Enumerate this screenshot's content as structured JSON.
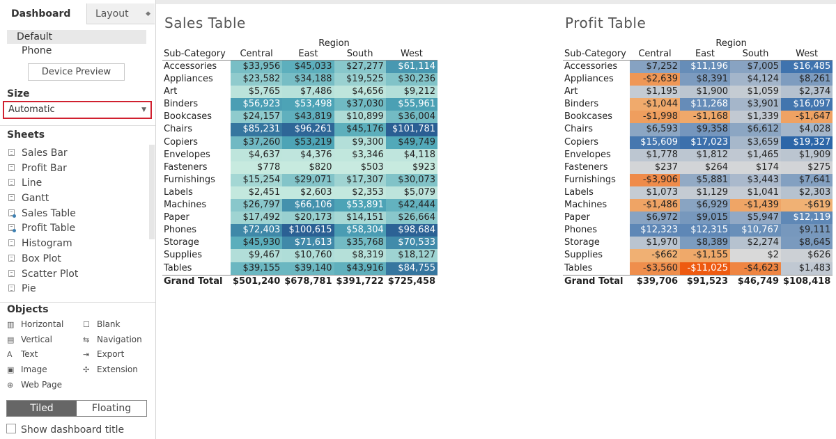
{
  "tabs": {
    "dashboard": "Dashboard",
    "layout": "Layout"
  },
  "device": {
    "default": "Default",
    "phone": "Phone",
    "preview_button": "Device Preview"
  },
  "size": {
    "title": "Size",
    "value": "Automatic"
  },
  "sheets": {
    "title": "Sheets",
    "items": [
      {
        "label": "Sales Bar",
        "used": false
      },
      {
        "label": "Profit Bar",
        "used": false
      },
      {
        "label": "Line",
        "used": false
      },
      {
        "label": "Gantt",
        "used": false
      },
      {
        "label": "Sales Table",
        "used": true
      },
      {
        "label": "Profit Table",
        "used": true
      },
      {
        "label": "Histogram",
        "used": false
      },
      {
        "label": "Box Plot",
        "used": false
      },
      {
        "label": "Scatter Plot",
        "used": false
      },
      {
        "label": "Pie",
        "used": false
      }
    ]
  },
  "objects": {
    "title": "Objects",
    "items": [
      {
        "label": "Horizontal",
        "icon": "horizontal-container-icon",
        "glyph": "▥"
      },
      {
        "label": "Blank",
        "icon": "blank-icon",
        "glyph": "☐"
      },
      {
        "label": "Vertical",
        "icon": "vertical-container-icon",
        "glyph": "▤"
      },
      {
        "label": "Navigation",
        "icon": "navigation-icon",
        "glyph": "⇆"
      },
      {
        "label": "Text",
        "icon": "text-icon",
        "glyph": "A"
      },
      {
        "label": "Export",
        "icon": "export-icon",
        "glyph": "⇥"
      },
      {
        "label": "Image",
        "icon": "image-icon",
        "glyph": "▣"
      },
      {
        "label": "Extension",
        "icon": "extension-icon",
        "glyph": "✣"
      },
      {
        "label": "Web Page",
        "icon": "web-page-icon",
        "glyph": "⊕"
      }
    ]
  },
  "layout_mode": {
    "tiled": "Tiled",
    "floating": "Floating",
    "selected": "Tiled"
  },
  "show_title_label": "Show dashboard title",
  "colors": {
    "size_highlight": "#d0202f",
    "sales_low": "#c9ebe0",
    "sales_high": "#2a5e93",
    "profit_neg": "#ee5a10",
    "profit_zero": "#d9d9d9",
    "profit_pos": "#2c66a8"
  },
  "sales_table": {
    "title": "Sales Table",
    "column_group": "Region",
    "row_header": "Sub-Category",
    "columns": [
      "Central",
      "East",
      "South",
      "West"
    ],
    "rows": [
      {
        "label": "Accessories",
        "values": [
          33956,
          45033,
          27277,
          61114
        ],
        "display": [
          "$33,956",
          "$45,033",
          "$27,277",
          "$61,114"
        ]
      },
      {
        "label": "Appliances",
        "values": [
          23582,
          34188,
          19525,
          30236
        ],
        "display": [
          "$23,582",
          "$34,188",
          "$19,525",
          "$30,236"
        ]
      },
      {
        "label": "Art",
        "values": [
          5765,
          7486,
          4656,
          9212
        ],
        "display": [
          "$5,765",
          "$7,486",
          "$4,656",
          "$9,212"
        ]
      },
      {
        "label": "Binders",
        "values": [
          56923,
          53498,
          37030,
          55961
        ],
        "display": [
          "$56,923",
          "$53,498",
          "$37,030",
          "$55,961"
        ]
      },
      {
        "label": "Bookcases",
        "values": [
          24157,
          43819,
          10899,
          36004
        ],
        "display": [
          "$24,157",
          "$43,819",
          "$10,899",
          "$36,004"
        ]
      },
      {
        "label": "Chairs",
        "values": [
          85231,
          96261,
          45176,
          101781
        ],
        "display": [
          "$85,231",
          "$96,261",
          "$45,176",
          "$101,781"
        ]
      },
      {
        "label": "Copiers",
        "values": [
          37260,
          53219,
          9300,
          49749
        ],
        "display": [
          "$37,260",
          "$53,219",
          "$9,300",
          "$49,749"
        ]
      },
      {
        "label": "Envelopes",
        "values": [
          4637,
          4376,
          3346,
          4118
        ],
        "display": [
          "$4,637",
          "$4,376",
          "$3,346",
          "$4,118"
        ]
      },
      {
        "label": "Fasteners",
        "values": [
          778,
          820,
          503,
          923
        ],
        "display": [
          "$778",
          "$820",
          "$503",
          "$923"
        ]
      },
      {
        "label": "Furnishings",
        "values": [
          15254,
          29071,
          17307,
          30073
        ],
        "display": [
          "$15,254",
          "$29,071",
          "$17,307",
          "$30,073"
        ]
      },
      {
        "label": "Labels",
        "values": [
          2451,
          2603,
          2353,
          5079
        ],
        "display": [
          "$2,451",
          "$2,603",
          "$2,353",
          "$5,079"
        ]
      },
      {
        "label": "Machines",
        "values": [
          26797,
          66106,
          53891,
          42444
        ],
        "display": [
          "$26,797",
          "$66,106",
          "$53,891",
          "$42,444"
        ]
      },
      {
        "label": "Paper",
        "values": [
          17492,
          20173,
          14151,
          26664
        ],
        "display": [
          "$17,492",
          "$20,173",
          "$14,151",
          "$26,664"
        ]
      },
      {
        "label": "Phones",
        "values": [
          72403,
          100615,
          58304,
          98684
        ],
        "display": [
          "$72,403",
          "$100,615",
          "$58,304",
          "$98,684"
        ]
      },
      {
        "label": "Storage",
        "values": [
          45930,
          71613,
          35768,
          70533
        ],
        "display": [
          "$45,930",
          "$71,613",
          "$35,768",
          "$70,533"
        ]
      },
      {
        "label": "Supplies",
        "values": [
          9467,
          10760,
          8319,
          18127
        ],
        "display": [
          "$9,467",
          "$10,760",
          "$8,319",
          "$18,127"
        ]
      },
      {
        "label": "Tables",
        "values": [
          39155,
          39140,
          43916,
          84755
        ],
        "display": [
          "$39,155",
          "$39,140",
          "$43,916",
          "$84,755"
        ]
      }
    ],
    "grand_total": {
      "label": "Grand Total",
      "display": [
        "$501,240",
        "$678,781",
        "$391,722",
        "$725,458"
      ]
    }
  },
  "profit_table": {
    "title": "Profit Table",
    "column_group": "Region",
    "row_header": "Sub-Category",
    "columns": [
      "Central",
      "East",
      "South",
      "West"
    ],
    "rows": [
      {
        "label": "Accessories",
        "values": [
          7252,
          11196,
          7005,
          16485
        ],
        "display": [
          "$7,252",
          "$11,196",
          "$7,005",
          "$16,485"
        ]
      },
      {
        "label": "Appliances",
        "values": [
          -2639,
          8391,
          4124,
          8261
        ],
        "display": [
          "-$2,639",
          "$8,391",
          "$4,124",
          "$8,261"
        ]
      },
      {
        "label": "Art",
        "values": [
          1195,
          1900,
          1059,
          2374
        ],
        "display": [
          "$1,195",
          "$1,900",
          "$1,059",
          "$2,374"
        ]
      },
      {
        "label": "Binders",
        "values": [
          -1044,
          11268,
          3901,
          16097
        ],
        "display": [
          "-$1,044",
          "$11,268",
          "$3,901",
          "$16,097"
        ]
      },
      {
        "label": "Bookcases",
        "values": [
          -1998,
          -1168,
          1339,
          -1647
        ],
        "display": [
          "-$1,998",
          "-$1,168",
          "$1,339",
          "-$1,647"
        ]
      },
      {
        "label": "Chairs",
        "values": [
          6593,
          9358,
          6612,
          4028
        ],
        "display": [
          "$6,593",
          "$9,358",
          "$6,612",
          "$4,028"
        ]
      },
      {
        "label": "Copiers",
        "values": [
          15609,
          17023,
          3659,
          19327
        ],
        "display": [
          "$15,609",
          "$17,023",
          "$3,659",
          "$19,327"
        ]
      },
      {
        "label": "Envelopes",
        "values": [
          1778,
          1812,
          1465,
          1909
        ],
        "display": [
          "$1,778",
          "$1,812",
          "$1,465",
          "$1,909"
        ]
      },
      {
        "label": "Fasteners",
        "values": [
          237,
          264,
          174,
          275
        ],
        "display": [
          "$237",
          "$264",
          "$174",
          "$275"
        ]
      },
      {
        "label": "Furnishings",
        "values": [
          -3906,
          5881,
          3443,
          7641
        ],
        "display": [
          "-$3,906",
          "$5,881",
          "$3,443",
          "$7,641"
        ]
      },
      {
        "label": "Labels",
        "values": [
          1073,
          1129,
          1041,
          2303
        ],
        "display": [
          "$1,073",
          "$1,129",
          "$1,041",
          "$2,303"
        ]
      },
      {
        "label": "Machines",
        "values": [
          -1486,
          6929,
          -1439,
          -619
        ],
        "display": [
          "-$1,486",
          "$6,929",
          "-$1,439",
          "-$619"
        ]
      },
      {
        "label": "Paper",
        "values": [
          6972,
          9015,
          5947,
          12119
        ],
        "display": [
          "$6,972",
          "$9,015",
          "$5,947",
          "$12,119"
        ]
      },
      {
        "label": "Phones",
        "values": [
          12323,
          12315,
          10767,
          9111
        ],
        "display": [
          "$12,323",
          "$12,315",
          "$10,767",
          "$9,111"
        ]
      },
      {
        "label": "Storage",
        "values": [
          1970,
          8389,
          2274,
          8645
        ],
        "display": [
          "$1,970",
          "$8,389",
          "$2,274",
          "$8,645"
        ]
      },
      {
        "label": "Supplies",
        "values": [
          -662,
          -1155,
          2,
          626
        ],
        "display": [
          "-$662",
          "-$1,155",
          "$2",
          "$626"
        ]
      },
      {
        "label": "Tables",
        "values": [
          -3560,
          -11025,
          -4623,
          1483
        ],
        "display": [
          "-$3,560",
          "-$11,025",
          "-$4,623",
          "$1,483"
        ]
      }
    ],
    "grand_total": {
      "label": "Grand Total",
      "display": [
        "$39,706",
        "$91,523",
        "$46,749",
        "$108,418"
      ]
    }
  }
}
